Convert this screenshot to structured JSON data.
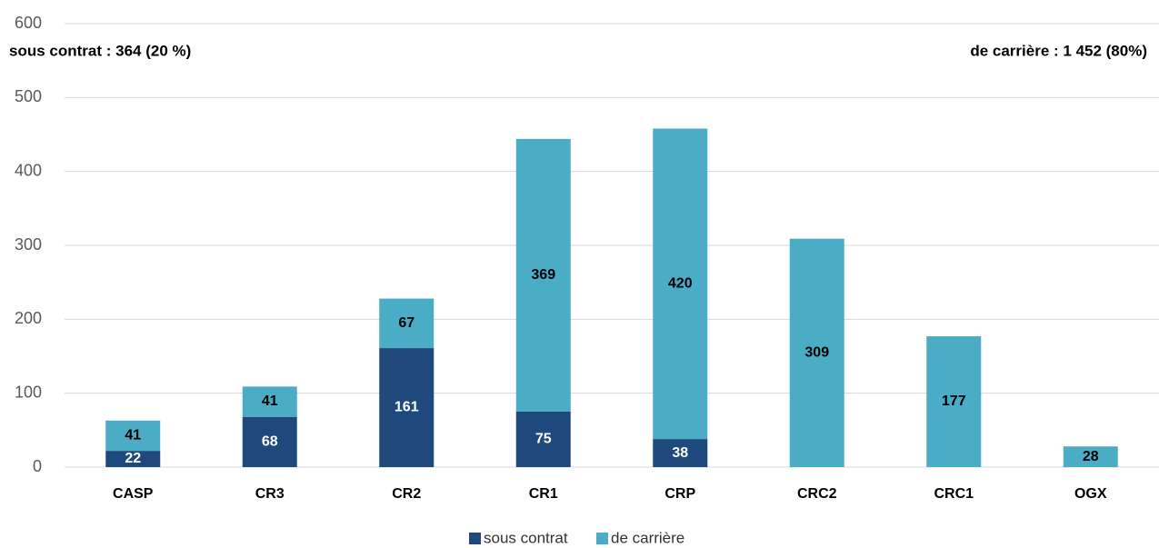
{
  "chart_data": {
    "type": "stacked_bar",
    "categories": [
      "CASP",
      "CR3",
      "CR2",
      "CR1",
      "CRP",
      "CRC2",
      "CRC1",
      "OGX"
    ],
    "series": [
      {
        "name": "sous contrat",
        "color": "#1f497d",
        "values": [
          22,
          68,
          161,
          75,
          38,
          null,
          null,
          null
        ]
      },
      {
        "name": "de carrière",
        "color": "#4bacc6",
        "values": [
          41,
          41,
          67,
          369,
          420,
          309,
          177,
          28
        ]
      }
    ],
    "annotations": [
      "sous contrat :  364 (20 %)",
      "de carrière : 1 452 (80%)"
    ],
    "ylim": [
      0,
      600
    ],
    "yticks": [
      0,
      100,
      200,
      300,
      400,
      500,
      600
    ],
    "grid": true,
    "legend": "bottom"
  }
}
